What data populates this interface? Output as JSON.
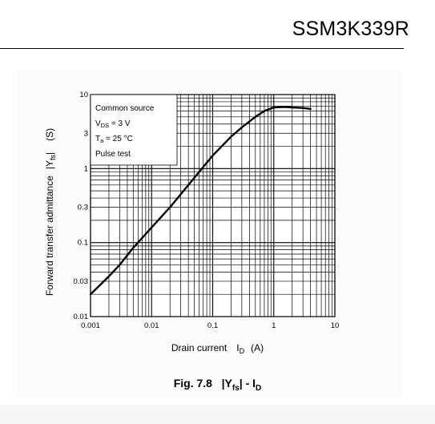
{
  "header": {
    "part_number": "SSM3K339R"
  },
  "caption": {
    "fig_label": "Fig. 7.8",
    "title_main": "|Y",
    "title_sub": "fs",
    "title_rest": "| - I",
    "title_sub2": "D"
  },
  "chart_data": {
    "type": "line",
    "xscale": "log",
    "yscale": "log",
    "xlim": [
      0.001,
      10
    ],
    "ylim": [
      0.01,
      10
    ],
    "x_ticks": [
      {
        "value": 0.001,
        "label": "0.001"
      },
      {
        "value": 0.01,
        "label": "0.01"
      },
      {
        "value": 0.1,
        "label": "0.1"
      },
      {
        "value": 1,
        "label": "1"
      },
      {
        "value": 10,
        "label": "10"
      }
    ],
    "y_ticks": [
      {
        "value": 0.01,
        "label": "0.01"
      },
      {
        "value": 0.03,
        "label": "0.03"
      },
      {
        "value": 0.1,
        "label": "0.1"
      },
      {
        "value": 0.3,
        "label": "0.3"
      },
      {
        "value": 1,
        "label": "1"
      },
      {
        "value": 3,
        "label": "3"
      },
      {
        "value": 10,
        "label": "10"
      }
    ],
    "grid": true,
    "xlabel": "Drain current",
    "xlabel_symbol": "I",
    "xlabel_sub": "D",
    "xlabel_unit": "(A)",
    "ylabel": "Forward transfer admittance",
    "ylabel_symbol": "|Y",
    "ylabel_sub": "fs",
    "ylabel_close": "|",
    "ylabel_unit": "(S)",
    "annotation": {
      "line1": "Common source",
      "line2_main": "V",
      "line2_sub": "DS",
      "line2_rest": " = 3 V",
      "line3_main": "T",
      "line3_sub": "a",
      "line3_rest": " = 25 °C",
      "line4": "Pulse test",
      "placement": "top-left"
    },
    "series": [
      {
        "x": [
          0.001,
          0.002,
          0.003,
          0.005,
          0.01,
          0.02,
          0.03,
          0.05,
          0.1,
          0.2,
          0.3,
          0.5,
          0.7,
          1.0,
          1.5,
          2.0,
          3.0,
          4.0
        ],
        "y": [
          0.02,
          0.035,
          0.05,
          0.085,
          0.16,
          0.3,
          0.45,
          0.75,
          1.5,
          2.7,
          3.6,
          5.0,
          6.0,
          6.7,
          6.8,
          6.7,
          6.6,
          6.4
        ]
      }
    ]
  }
}
